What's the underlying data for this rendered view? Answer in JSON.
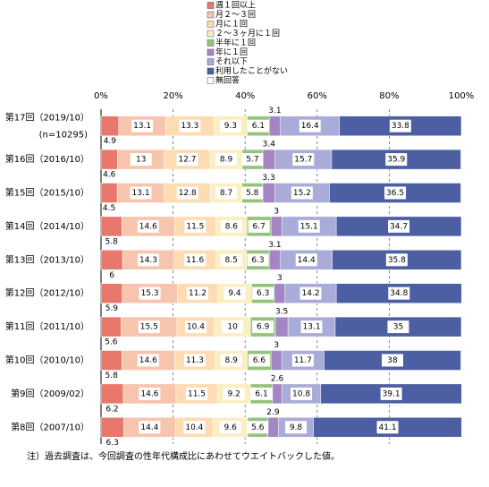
{
  "chart_data": {
    "type": "stacked-bar-horizontal",
    "categories": [
      "第17回（2019/10）",
      "第16回（2016/10）",
      "第15回（2015/10）",
      "第14回（2014/10）",
      "第13回（2013/10）",
      "第12回（2012/10）",
      "第11回（2011/10）",
      "第10回（2010/10）",
      "第9回（2009/02）",
      "第8回（2007/10）"
    ],
    "sample_size_label": "(n=10295)",
    "series": [
      {
        "name": "週１回以上",
        "color": "#e8786c",
        "label_position": "below",
        "values": [
          4.9,
          4.6,
          4.5,
          5.8,
          6.0,
          5.9,
          5.6,
          5.8,
          6.2,
          6.3
        ]
      },
      {
        "name": "月２～３回",
        "color": "#f7c4ae",
        "label_position": "inside",
        "values": [
          13.1,
          13.0,
          13.1,
          14.6,
          14.3,
          15.3,
          15.5,
          14.6,
          14.6,
          14.4
        ]
      },
      {
        "name": "月に１回",
        "color": "#fddcb4",
        "label_position": "inside",
        "values": [
          13.3,
          12.7,
          12.8,
          11.5,
          11.6,
          11.2,
          10.4,
          11.3,
          11.5,
          10.4
        ]
      },
      {
        "name": "２～３ヶ月に１回",
        "color": "#fbeec0",
        "label_position": "inside",
        "values": [
          9.3,
          8.9,
          8.7,
          8.6,
          8.5,
          9.4,
          10.0,
          8.9,
          9.2,
          9.6
        ]
      },
      {
        "name": "半年に１回",
        "color": "#94c47c",
        "label_position": "inside",
        "values": [
          6.1,
          5.7,
          5.8,
          6.7,
          6.3,
          6.3,
          6.9,
          6.6,
          6.1,
          5.6
        ]
      },
      {
        "name": "年に１回",
        "color": "#a486c4",
        "label_position": "above",
        "values": [
          3.1,
          3.4,
          3.3,
          3.0,
          3.1,
          3.0,
          3.5,
          3.0,
          2.6,
          2.9
        ]
      },
      {
        "name": "それ以下",
        "color": "#a9abd9",
        "label_position": "inside",
        "values": [
          16.4,
          15.7,
          15.2,
          15.1,
          14.4,
          14.2,
          13.1,
          11.7,
          10.8,
          9.8
        ]
      },
      {
        "name": "利用したことがない",
        "color": "#4c5fa3",
        "label_position": "inside",
        "values": [
          33.8,
          35.9,
          36.5,
          34.7,
          35.8,
          34.8,
          35.0,
          38.0,
          39.1,
          41.1
        ]
      },
      {
        "name": "無回答",
        "color": "#ffffff",
        "label_position": "none",
        "values": [
          0,
          0.1,
          0.1,
          0,
          0,
          0,
          0,
          0.1,
          0,
          0
        ]
      }
    ],
    "xlim": [
      0,
      100
    ],
    "xticks": [
      {
        "value": 0,
        "label": "0%"
      },
      {
        "value": 20,
        "label": "20%"
      },
      {
        "value": 40,
        "label": "40%"
      },
      {
        "value": 60,
        "label": "60%"
      },
      {
        "value": 80,
        "label": "80%"
      },
      {
        "value": 100,
        "label": "100%"
      }
    ],
    "grid": true,
    "footnote": "注）過去調査は、今回調査の性年代構成比にあわせてウエイトバックした値。"
  }
}
